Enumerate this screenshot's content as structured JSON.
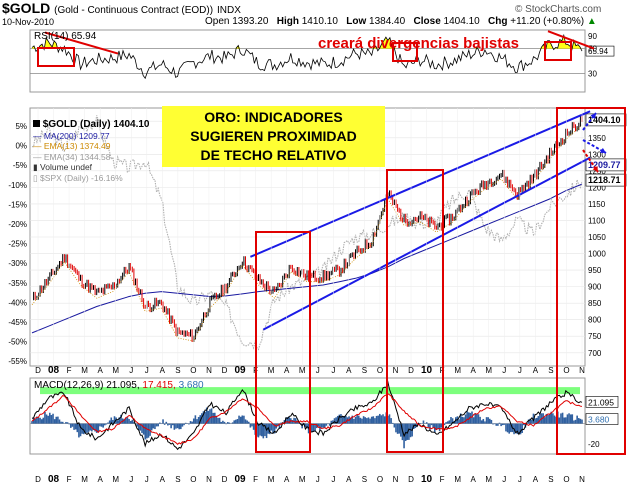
{
  "header": {
    "symbol": "$GOLD",
    "description": "(Gold - Continuous Contract (EOD))",
    "exchange": "INDX",
    "watermark": "© StockCharts.com",
    "date": "10-Nov-2010",
    "open_label": "Open",
    "open": "1393.20",
    "high_label": "High",
    "high": "1410.10",
    "low_label": "Low",
    "low": "1384.40",
    "close_label": "Close",
    "close": "1404.10",
    "chg_label": "Chg",
    "chg": "+11.20 (+0.80%)",
    "chg_arrow": "▲"
  },
  "annotations": {
    "main_box_lines": [
      "ORO: INDICADORES",
      "SUGIEREN PROXIMIDAD",
      "DE TECHO RELATIVO"
    ],
    "rsi_note": "creará divergencias bajistas"
  },
  "colors": {
    "price": "#000000",
    "down": "#e00000",
    "ma200": "#1a1aa0",
    "ema13": "#cc8800",
    "ema34": "#9a9a9a",
    "spx": "#b0b0b0",
    "trend": "#1a1ae6",
    "box": "#e00000",
    "highlight": "#66ff66",
    "volume": "#3060a0",
    "rsi_fill": "#ffff00"
  },
  "chart_data": [
    {
      "type": "line",
      "panel": "rsi",
      "legend": "RSI(14) 65.94",
      "ylim": [
        0,
        100
      ],
      "y_ticks": [
        30,
        70,
        90
      ],
      "last_value_label": "65.94",
      "x": [
        "2008-01",
        "2008-02",
        "2008-03",
        "2008-04",
        "2008-05",
        "2008-06",
        "2008-07",
        "2008-08",
        "2008-09",
        "2008-10",
        "2008-11",
        "2008-12",
        "2009-01",
        "2009-02",
        "2009-03",
        "2009-04",
        "2009-05",
        "2009-06",
        "2009-07",
        "2009-08",
        "2009-09",
        "2009-10",
        "2009-11",
        "2009-12",
        "2010-01",
        "2010-02",
        "2010-03",
        "2010-04",
        "2010-05",
        "2010-06",
        "2010-07",
        "2010-08",
        "2010-09",
        "2010-10",
        "2010-11"
      ],
      "values": [
        72,
        80,
        70,
        45,
        52,
        55,
        60,
        32,
        45,
        30,
        48,
        58,
        55,
        70,
        46,
        44,
        56,
        48,
        45,
        50,
        62,
        60,
        82,
        40,
        52,
        44,
        50,
        60,
        68,
        55,
        40,
        52,
        76,
        82,
        66
      ]
    },
    {
      "type": "line",
      "panel": "price",
      "legend": [
        "$GOLD (Daily) 1404.10",
        "MA(200) 1209.77",
        "EMA(13) 1374.49",
        "EMA(34) 1344.58",
        "Volume undef",
        "$SPX (Daily) -16.16%"
      ],
      "x_month_labels": [
        "D",
        "08",
        "F",
        "M",
        "A",
        "M",
        "J",
        "J",
        "A",
        "S",
        "O",
        "N",
        "D",
        "09",
        "F",
        "M",
        "A",
        "M",
        "J",
        "J",
        "A",
        "S",
        "O",
        "N",
        "D",
        "10",
        "F",
        "M",
        "A",
        "M",
        "J",
        "J",
        "A",
        "S",
        "O",
        "N"
      ],
      "y_right_ticks": [
        700,
        750,
        800,
        850,
        900,
        950,
        1000,
        1050,
        1100,
        1150,
        1200,
        1250,
        1300,
        1350,
        1400
      ],
      "y_left_ticks": [
        "5%",
        "0%",
        "-5%",
        "-10%",
        "-15%",
        "-20%",
        "-25%",
        "-30%",
        "-35%",
        "-40%",
        "-45%",
        "-50%",
        "-55%"
      ],
      "ylim": [
        660,
        1440
      ],
      "value_labels": [
        "1404.10",
        "1209.77",
        "1218.71"
      ],
      "x": [
        "2008-01",
        "2008-02",
        "2008-03",
        "2008-04",
        "2008-05",
        "2008-06",
        "2008-07",
        "2008-08",
        "2008-09",
        "2008-10",
        "2008-11",
        "2008-12",
        "2009-01",
        "2009-02",
        "2009-03",
        "2009-04",
        "2009-05",
        "2009-06",
        "2009-07",
        "2009-08",
        "2009-09",
        "2009-10",
        "2009-11",
        "2009-12",
        "2010-01",
        "2010-02",
        "2010-03",
        "2010-04",
        "2010-05",
        "2010-06",
        "2010-07",
        "2010-08",
        "2010-09",
        "2010-10",
        "2010-11"
      ],
      "series": [
        {
          "name": "$GOLD (Daily)",
          "values": [
            860,
            920,
            990,
            920,
            880,
            900,
            960,
            840,
            850,
            760,
            750,
            850,
            900,
            980,
            920,
            880,
            960,
            930,
            930,
            950,
            1000,
            1040,
            1180,
            1100,
            1110,
            1080,
            1110,
            1170,
            1210,
            1240,
            1180,
            1230,
            1300,
            1360,
            1404
          ]
        },
        {
          "name": "MA(200)",
          "values": [
            760,
            780,
            800,
            820,
            840,
            855,
            870,
            880,
            885,
            880,
            875,
            870,
            872,
            878,
            885,
            890,
            895,
            900,
            905,
            915,
            925,
            940,
            960,
            985,
            1005,
            1025,
            1045,
            1065,
            1085,
            1105,
            1125,
            1145,
            1165,
            1190,
            1210
          ]
        },
        {
          "name": "$SPX (Daily)",
          "values": [
            1330,
            1370,
            1320,
            1380,
            1400,
            1280,
            1260,
            1280,
            1160,
            900,
            850,
            880,
            840,
            740,
            730,
            860,
            900,
            920,
            950,
            1010,
            1050,
            1060,
            1090,
            1110,
            1090,
            1100,
            1160,
            1190,
            1080,
            1040,
            1100,
            1060,
            1140,
            1180,
            1219
          ]
        }
      ]
    },
    {
      "type": "line",
      "panel": "macd",
      "legend": [
        "MACD(12,26,9) 21.095,",
        "17.415,",
        "3.680"
      ],
      "y_ticks": [
        -20
      ],
      "value_labels": [
        "21.095",
        "3.680"
      ],
      "ylim": [
        -30,
        45
      ],
      "x": [
        "2008-01",
        "2008-02",
        "2008-03",
        "2008-04",
        "2008-05",
        "2008-06",
        "2008-07",
        "2008-08",
        "2008-09",
        "2008-10",
        "2008-11",
        "2008-12",
        "2009-01",
        "2009-02",
        "2009-03",
        "2009-04",
        "2009-05",
        "2009-06",
        "2009-07",
        "2009-08",
        "2009-09",
        "2009-10",
        "2009-11",
        "2009-12",
        "2010-01",
        "2010-02",
        "2010-03",
        "2010-04",
        "2010-05",
        "2010-06",
        "2010-07",
        "2010-08",
        "2010-09",
        "2010-10",
        "2010-11"
      ],
      "series": [
        {
          "name": "MACD",
          "values": [
            5,
            25,
            30,
            -5,
            -15,
            0,
            15,
            -20,
            -10,
            -25,
            -10,
            20,
            10,
            35,
            0,
            -10,
            10,
            -5,
            -10,
            5,
            15,
            20,
            40,
            -10,
            0,
            -12,
            0,
            15,
            20,
            15,
            -10,
            5,
            20,
            30,
            21
          ]
        },
        {
          "name": "Signal",
          "values": [
            2,
            15,
            28,
            8,
            -8,
            -5,
            8,
            -5,
            -12,
            -20,
            -15,
            5,
            12,
            25,
            15,
            -2,
            2,
            2,
            -5,
            -2,
            8,
            15,
            30,
            12,
            -2,
            -5,
            -5,
            5,
            15,
            17,
            2,
            -2,
            10,
            22,
            17
          ]
        },
        {
          "name": "Histogram",
          "values": [
            3,
            10,
            2,
            -13,
            -7,
            5,
            7,
            -15,
            2,
            -5,
            5,
            15,
            -2,
            10,
            -15,
            -8,
            8,
            -7,
            -5,
            7,
            7,
            5,
            10,
            -22,
            2,
            -7,
            5,
            10,
            5,
            -2,
            -12,
            7,
            10,
            8,
            4
          ]
        }
      ]
    }
  ]
}
